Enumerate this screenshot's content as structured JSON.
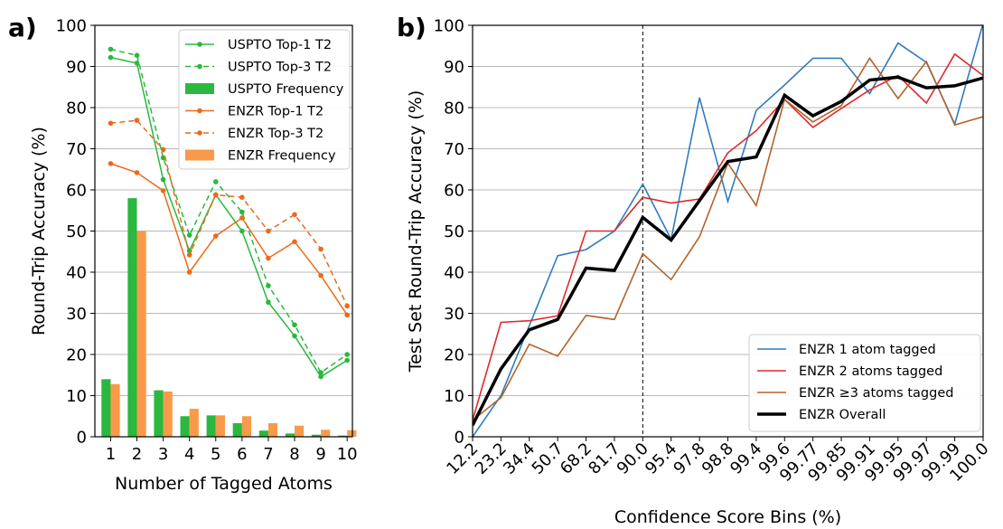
{
  "chart_data": [
    {
      "panel": "a)",
      "type": "bar+line",
      "xlabel": "Number of Tagged Atoms",
      "ylabel": "Round-Trip Accuracy (%)",
      "ylim": [
        0,
        100
      ],
      "yticks": [
        0,
        10,
        20,
        30,
        40,
        50,
        60,
        70,
        80,
        90,
        100
      ],
      "categories": [
        "1",
        "2",
        "3",
        "4",
        "5",
        "6",
        "7",
        "8",
        "9",
        "10"
      ],
      "grid": "horizontal",
      "legend_position": "top-right",
      "bars": [
        {
          "name": "USPTO Frequency",
          "color": "#2ab83f",
          "values": [
            14,
            58,
            11.3,
            5,
            5.2,
            3.3,
            1.5,
            0.8,
            0.5,
            0.3
          ]
        },
        {
          "name": "ENZR Frequency",
          "color": "#f89a4a",
          "values": [
            12.8,
            50,
            11,
            6.8,
            5.2,
            5,
            3.3,
            2.7,
            1.7,
            1.6
          ]
        }
      ],
      "series": [
        {
          "name": "USPTO Top-1 T2",
          "color": "#2ab83f",
          "dashed": false,
          "values": [
            92.2,
            90.8,
            62.5,
            45.2,
            58.8,
            50,
            32.7,
            24.5,
            14.6,
            18.6
          ]
        },
        {
          "name": "USPTO Top-3 T2",
          "color": "#2ab83f",
          "dashed": true,
          "values": [
            94.2,
            92.7,
            67.8,
            49,
            62,
            54.6,
            36.7,
            27.2,
            15.6,
            20
          ]
        },
        {
          "name": "ENZR Top-1 T2",
          "color": "#ea6a1a",
          "dashed": false,
          "values": [
            66.4,
            64.2,
            59.8,
            40,
            48.8,
            53.2,
            43.4,
            47.4,
            39.2,
            29.6
          ]
        },
        {
          "name": "ENZR Top-3 T2",
          "color": "#ea6a1a",
          "dashed": true,
          "values": [
            76.2,
            76.9,
            69.8,
            44.2,
            58.8,
            58.2,
            50,
            54,
            45.6,
            31.8
          ]
        }
      ]
    },
    {
      "panel": "b)",
      "type": "line",
      "xlabel": "Confidence Score Bins (%)",
      "ylabel": "Test Set Round-Trip Accuracy (%)",
      "ylim": [
        0,
        100
      ],
      "yticks": [
        0,
        10,
        20,
        30,
        40,
        50,
        60,
        70,
        80,
        90,
        100
      ],
      "categories": [
        "12.2",
        "23.2",
        "34.4",
        "50.7",
        "68.2",
        "81.7",
        "90.0",
        "95.4",
        "97.8",
        "98.8",
        "99.4",
        "99.6",
        "99.77",
        "99.85",
        "99.91",
        "99.95",
        "99.97",
        "99.99",
        "100.0"
      ],
      "grid": "horizontal",
      "vline_at_category": "90.0",
      "legend_position": "bottom-right",
      "series": [
        {
          "name": "ENZR 1 atom tagged",
          "color": "#2e7cbf",
          "width": 1.6,
          "values": [
            0,
            10,
            27,
            44,
            45.5,
            50,
            61.4,
            48,
            82.4,
            57.2,
            79.3,
            85.5,
            92,
            92,
            83.4,
            95.7,
            91,
            76,
            100.5
          ]
        },
        {
          "name": "ENZR 2 atoms tagged",
          "color": "#df2a2a",
          "width": 1.6,
          "values": [
            4,
            27.8,
            28.2,
            29.4,
            50,
            50,
            58.2,
            56.8,
            57.8,
            69,
            74.4,
            82,
            75.2,
            79.8,
            84.3,
            87.8,
            81.1,
            93,
            87.8
          ]
        },
        {
          "name": "ENZR ≥3 atoms tagged",
          "color": "#b4632b",
          "width": 1.6,
          "values": [
            4,
            9.5,
            22.5,
            19.6,
            29.5,
            28.5,
            44.5,
            38.2,
            48.6,
            66.5,
            56.2,
            82,
            76.5,
            80.5,
            92,
            82.2,
            91.2,
            75.8,
            77.8
          ]
        },
        {
          "name": "ENZR Overall",
          "color": "#000000",
          "width": 3.5,
          "values": [
            2.8,
            16.5,
            26,
            28.5,
            41,
            40.4,
            53.3,
            47.8,
            57.4,
            66.9,
            68,
            83,
            78,
            81.5,
            86.7,
            87.4,
            84.8,
            85.3,
            87.2
          ]
        }
      ]
    }
  ]
}
